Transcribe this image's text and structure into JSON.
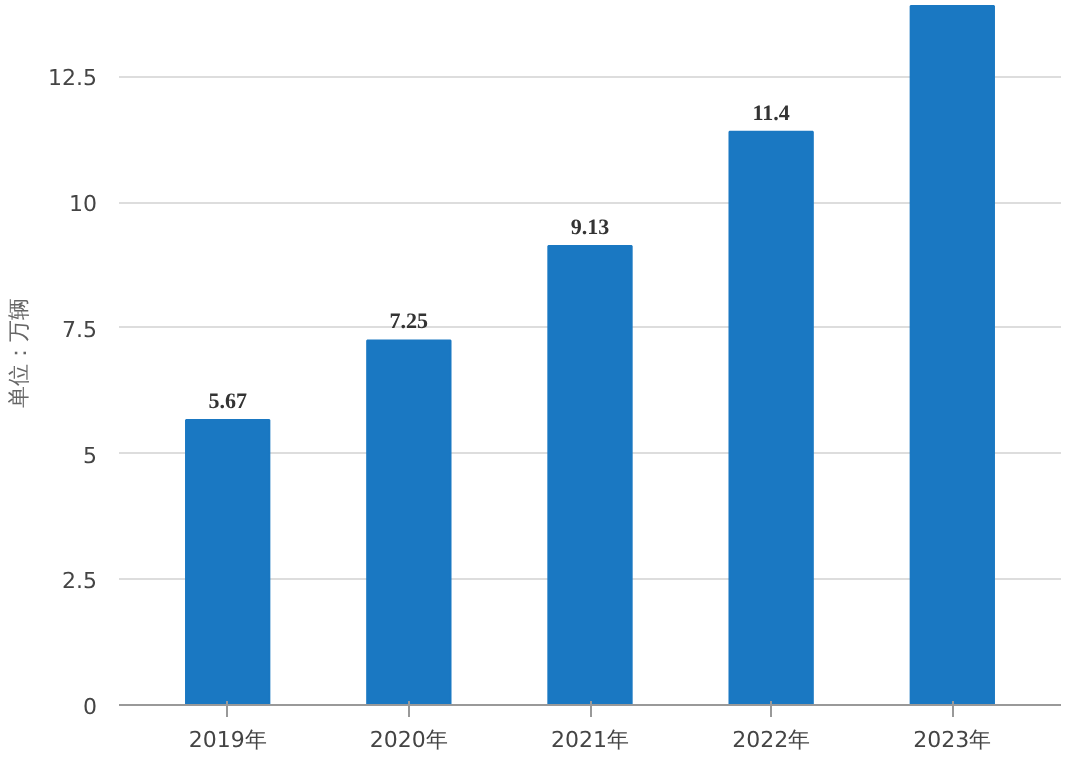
{
  "chart_data": {
    "type": "bar",
    "ylabel": "单位：万辆",
    "categories": [
      "2019年",
      "2020年",
      "2021年",
      "2022年",
      "2023年"
    ],
    "values": [
      5.67,
      7.25,
      9.13,
      11.4,
      13.9
    ],
    "value_labels": [
      "5.67",
      "7.25",
      "9.13",
      "11.4",
      null
    ],
    "color": "#1a78c2",
    "ylim": [
      0,
      14
    ],
    "yticks": [
      0,
      2.5,
      5,
      7.5,
      10,
      12.5
    ],
    "grid": "y"
  }
}
